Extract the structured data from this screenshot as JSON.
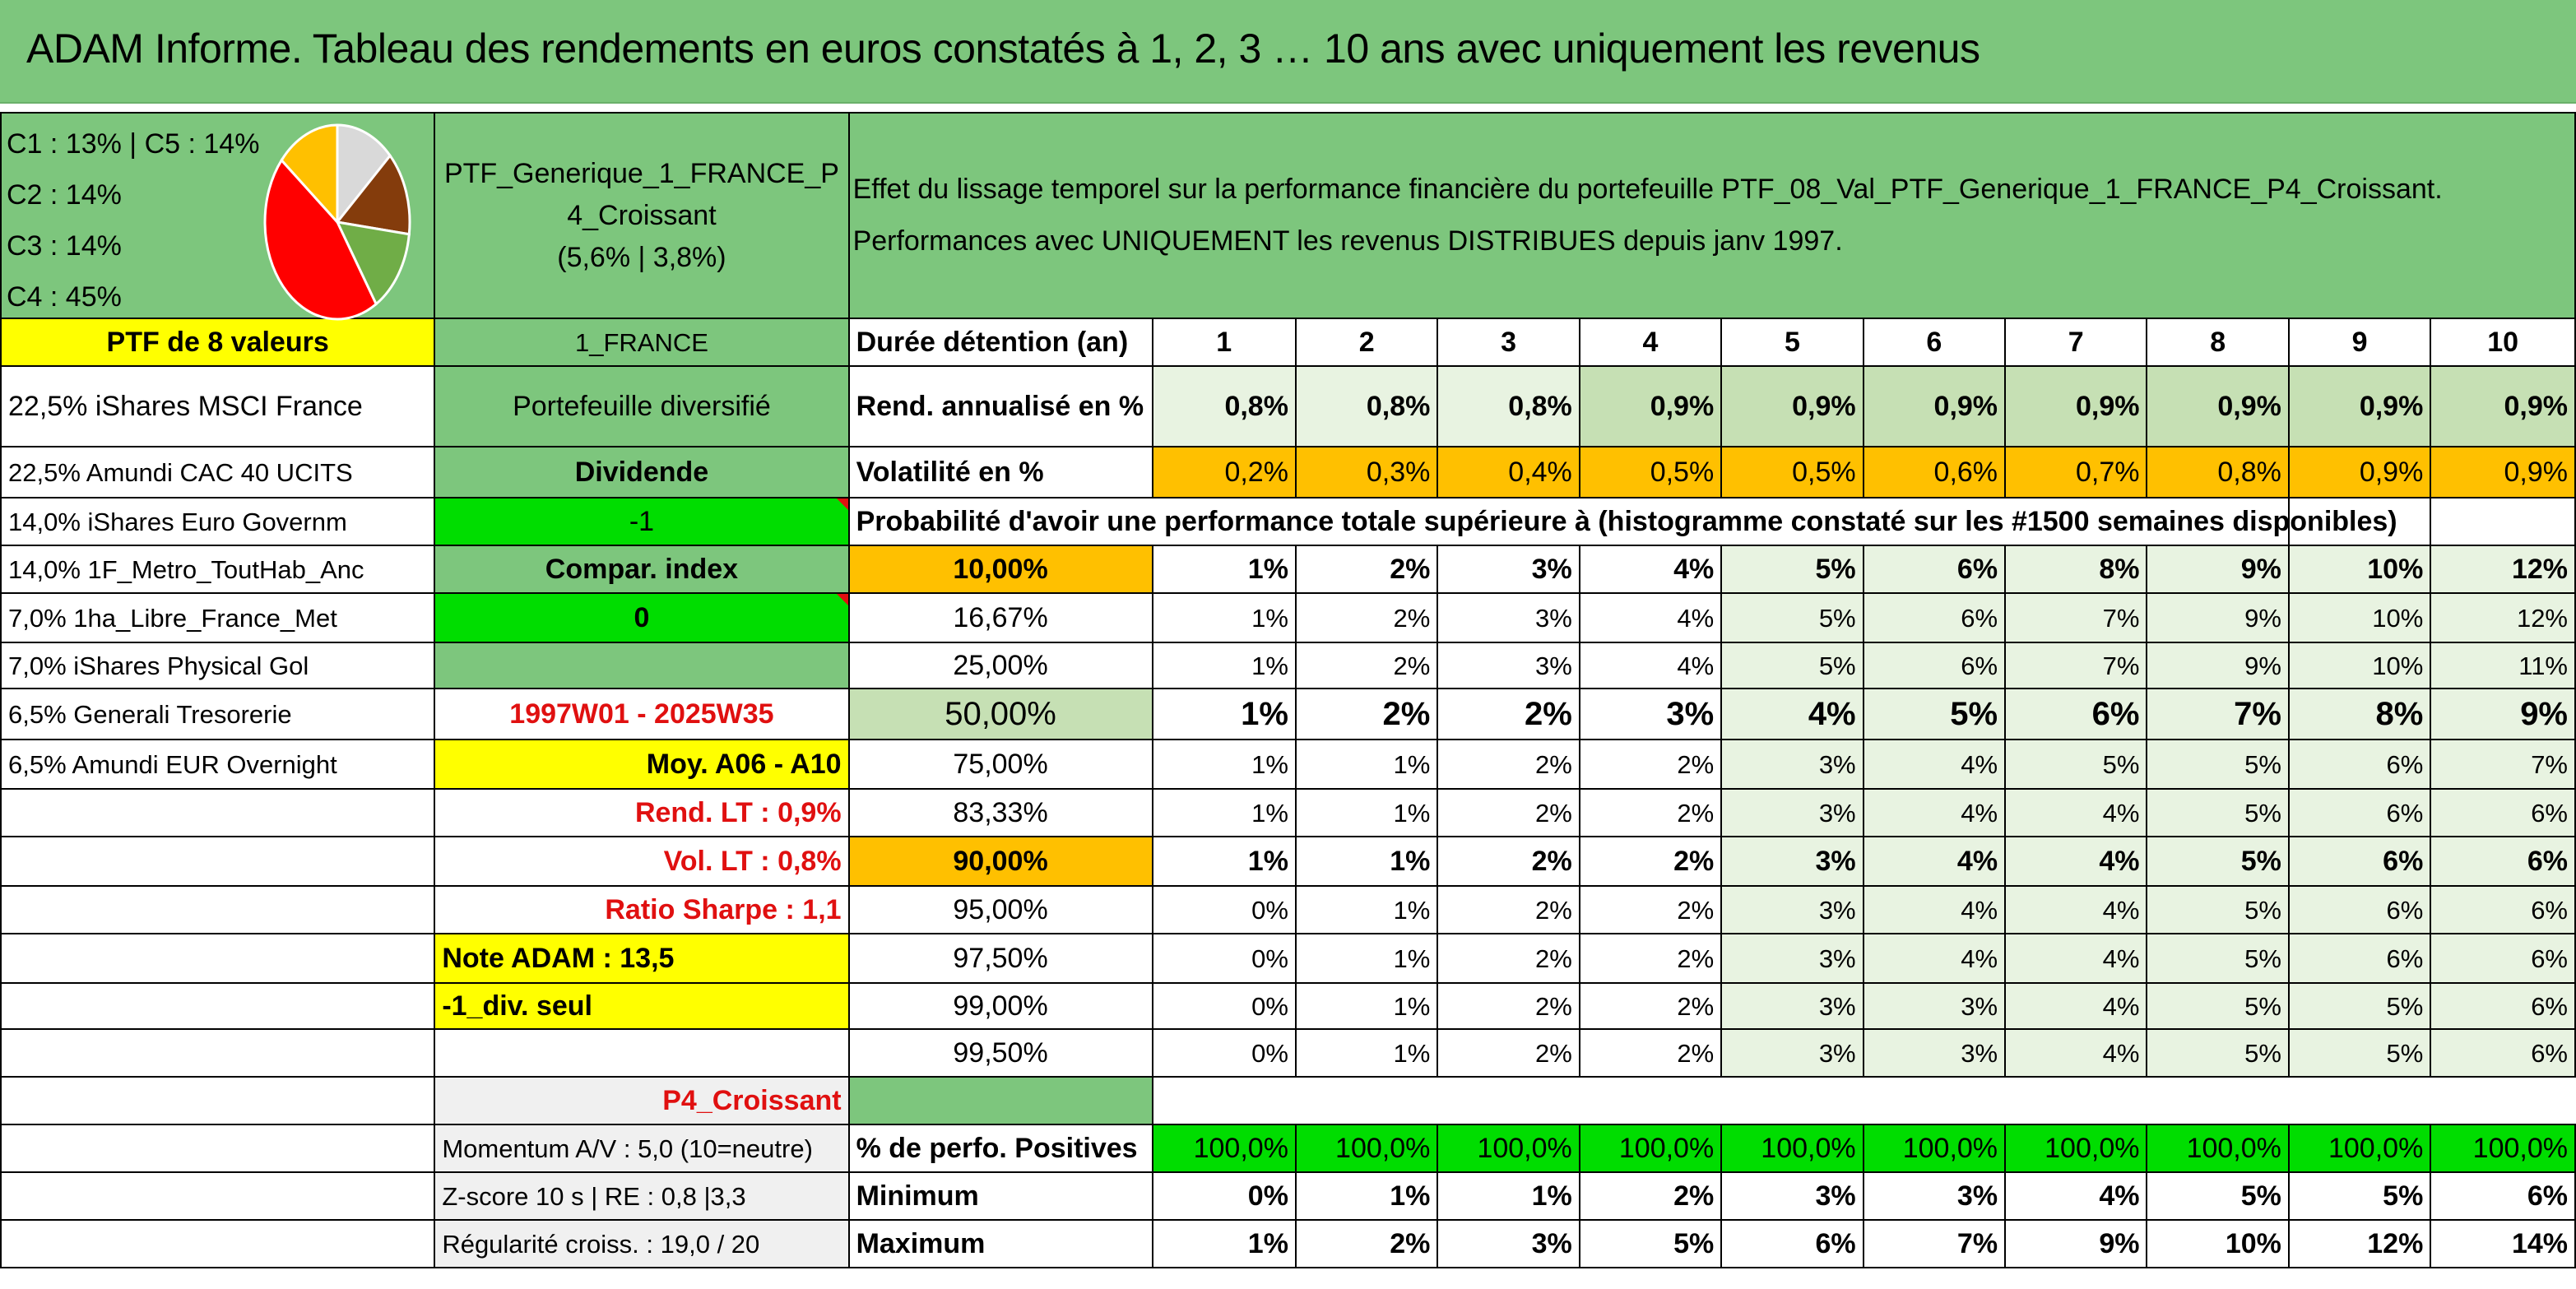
{
  "title": "ADAM Informe. Tableau des rendements en euros constatés à 1, 2, 3 … 10 ans avec uniquement les revenus",
  "colors": {
    "header_green": "#7dc67d",
    "light_green": "#c6e0b4",
    "bright_green": "#00dd00",
    "yellow": "#ffff00",
    "orange": "#ffc000",
    "red_text": "#e01010"
  },
  "pie": {
    "legend": [
      "C1 : 13% | C5 : 14%",
      "C2 : 14%",
      "C3 : 14%",
      "C4 : 45%"
    ],
    "slices": [
      {
        "name": "C1",
        "value": 13,
        "color": "#d9d9d9"
      },
      {
        "name": "C2",
        "value": 14,
        "color": "#843c0c"
      },
      {
        "name": "C3",
        "value": 14,
        "color": "#70ad47"
      },
      {
        "name": "C4",
        "value": 45,
        "color": "#ff0000"
      },
      {
        "name": "C5",
        "value": 14,
        "color": "#ffc000"
      }
    ]
  },
  "portfolio": {
    "name": "PTF_Generique_1_FRANCE_P4_Croissant",
    "name_line1": "PTF_Generique_1_FRANCE_P",
    "name_line2": "4_Croissant",
    "perf": "(5,6% | 3,8%)",
    "size_label": "PTF de 8 valeurs",
    "zone": "1_FRANCE",
    "type": "Portefeuille diversifié",
    "dividend_label": "Dividende",
    "dividend_value": "-1",
    "compar_label": "Compar. index",
    "compar_value": "0",
    "period": "1997W01 - 2025W35",
    "moy": "Moy. A06 - A10",
    "rend_lt": "Rend. LT : 0,9%",
    "vol_lt": "Vol. LT : 0,8%",
    "sharpe": "Ratio Sharpe : 1,1",
    "note": "Note ADAM : 13,5",
    "div_seul": "-1_div. seul",
    "profile": "P4_Croissant",
    "momentum": "Momentum A/V : 5,0 (10=neutre)",
    "zscore": "Z-score 10 s | RE : 0,8 |3,3",
    "regularite": "Régularité croiss. : 19,0 / 20"
  },
  "holdings": [
    "22,5% iShares MSCI France",
    "22,5% Amundi CAC 40 UCITS",
    "14,0% iShares Euro Governm",
    "14,0% 1F_Metro_ToutHab_Anc",
    "7,0% 1ha_Libre_France_Met",
    "7,0% iShares Physical Gol",
    "6,5% Generali Tresorerie",
    "6,5% Amundi EUR Overnight"
  ],
  "effect": {
    "line1": "Effet du lissage temporel sur la performance financière du portefeuille PTF_08_Val_PTF_Generique_1_FRANCE_P4_Croissant.",
    "line2": "Performances avec UNIQUEMENT les revenus DISTRIBUES depuis janv 1997."
  },
  "table": {
    "duration_label": "Durée détention (an)",
    "years": [
      "1",
      "2",
      "3",
      "4",
      "5",
      "6",
      "7",
      "8",
      "9",
      "10"
    ],
    "rend_label": "Rend. annualisé en %",
    "rend": [
      "0,8%",
      "0,8%",
      "0,8%",
      "0,9%",
      "0,9%",
      "0,9%",
      "0,9%",
      "0,9%",
      "0,9%",
      "0,9%"
    ],
    "vol_label": "Volatilité en %",
    "vol": [
      "0,2%",
      "0,3%",
      "0,4%",
      "0,5%",
      "0,5%",
      "0,6%",
      "0,7%",
      "0,8%",
      "0,9%",
      "0,9%"
    ],
    "prob_label": "Probabilité d'avoir une performance totale supérieure à (histogramme constaté sur les #1500 semaines disponibles)",
    "prob_rows": [
      {
        "label": "10,00%",
        "values": [
          "1%",
          "2%",
          "3%",
          "4%",
          "5%",
          "6%",
          "8%",
          "9%",
          "10%",
          "12%"
        ]
      },
      {
        "label": "16,67%",
        "values": [
          "1%",
          "2%",
          "3%",
          "4%",
          "5%",
          "6%",
          "7%",
          "9%",
          "10%",
          "12%"
        ]
      },
      {
        "label": "25,00%",
        "values": [
          "1%",
          "2%",
          "3%",
          "4%",
          "5%",
          "6%",
          "7%",
          "9%",
          "10%",
          "11%"
        ]
      },
      {
        "label": "50,00%",
        "values": [
          "1%",
          "2%",
          "2%",
          "3%",
          "4%",
          "5%",
          "6%",
          "7%",
          "8%",
          "9%"
        ]
      },
      {
        "label": "75,00%",
        "values": [
          "1%",
          "1%",
          "2%",
          "2%",
          "3%",
          "4%",
          "5%",
          "5%",
          "6%",
          "7%"
        ]
      },
      {
        "label": "83,33%",
        "values": [
          "1%",
          "1%",
          "2%",
          "2%",
          "3%",
          "4%",
          "4%",
          "5%",
          "6%",
          "6%"
        ]
      },
      {
        "label": "90,00%",
        "values": [
          "1%",
          "1%",
          "2%",
          "2%",
          "3%",
          "4%",
          "4%",
          "5%",
          "6%",
          "6%"
        ]
      },
      {
        "label": "95,00%",
        "values": [
          "0%",
          "1%",
          "2%",
          "2%",
          "3%",
          "4%",
          "4%",
          "5%",
          "6%",
          "6%"
        ]
      },
      {
        "label": "97,50%",
        "values": [
          "0%",
          "1%",
          "2%",
          "2%",
          "3%",
          "4%",
          "4%",
          "5%",
          "6%",
          "6%"
        ]
      },
      {
        "label": "99,00%",
        "values": [
          "0%",
          "1%",
          "2%",
          "2%",
          "3%",
          "3%",
          "4%",
          "5%",
          "5%",
          "6%"
        ]
      },
      {
        "label": "99,50%",
        "values": [
          "0%",
          "1%",
          "2%",
          "2%",
          "3%",
          "3%",
          "4%",
          "5%",
          "5%",
          "6%"
        ]
      }
    ],
    "pos_label": "% de perfo. Positives",
    "pos": [
      "100,0%",
      "100,0%",
      "100,0%",
      "100,0%",
      "100,0%",
      "100,0%",
      "100,0%",
      "100,0%",
      "100,0%",
      "100,0%"
    ],
    "min_label": "Minimum",
    "min": [
      "0%",
      "1%",
      "1%",
      "2%",
      "3%",
      "3%",
      "4%",
      "5%",
      "5%",
      "6%"
    ],
    "max_label": "Maximum",
    "max": [
      "1%",
      "2%",
      "3%",
      "5%",
      "6%",
      "7%",
      "9%",
      "10%",
      "12%",
      "14%"
    ]
  }
}
